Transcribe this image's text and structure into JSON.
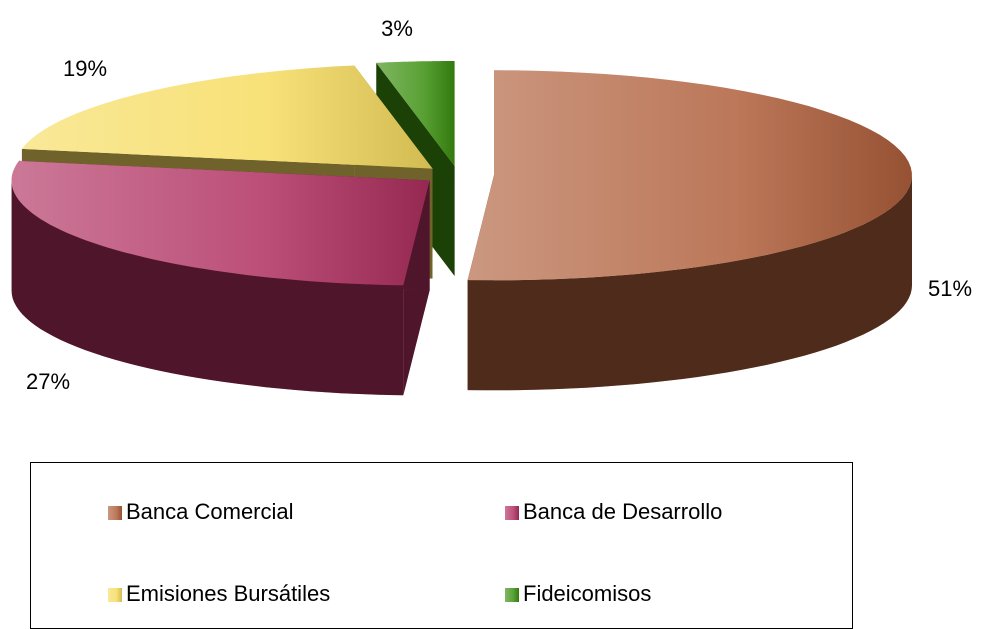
{
  "chart_data": {
    "type": "pie",
    "categories": [
      "Banca Comercial",
      "Banca de Desarrollo",
      "Emisiones Bursátiles",
      "Fideicomisos"
    ],
    "values": [
      51,
      27,
      19,
      3
    ],
    "value_labels": [
      "51%",
      "27%",
      "19%",
      "3%"
    ],
    "colors": [
      "#b0603c",
      "#b03060",
      "#f6dc60",
      "#3c9010"
    ],
    "legend": "bottom"
  }
}
